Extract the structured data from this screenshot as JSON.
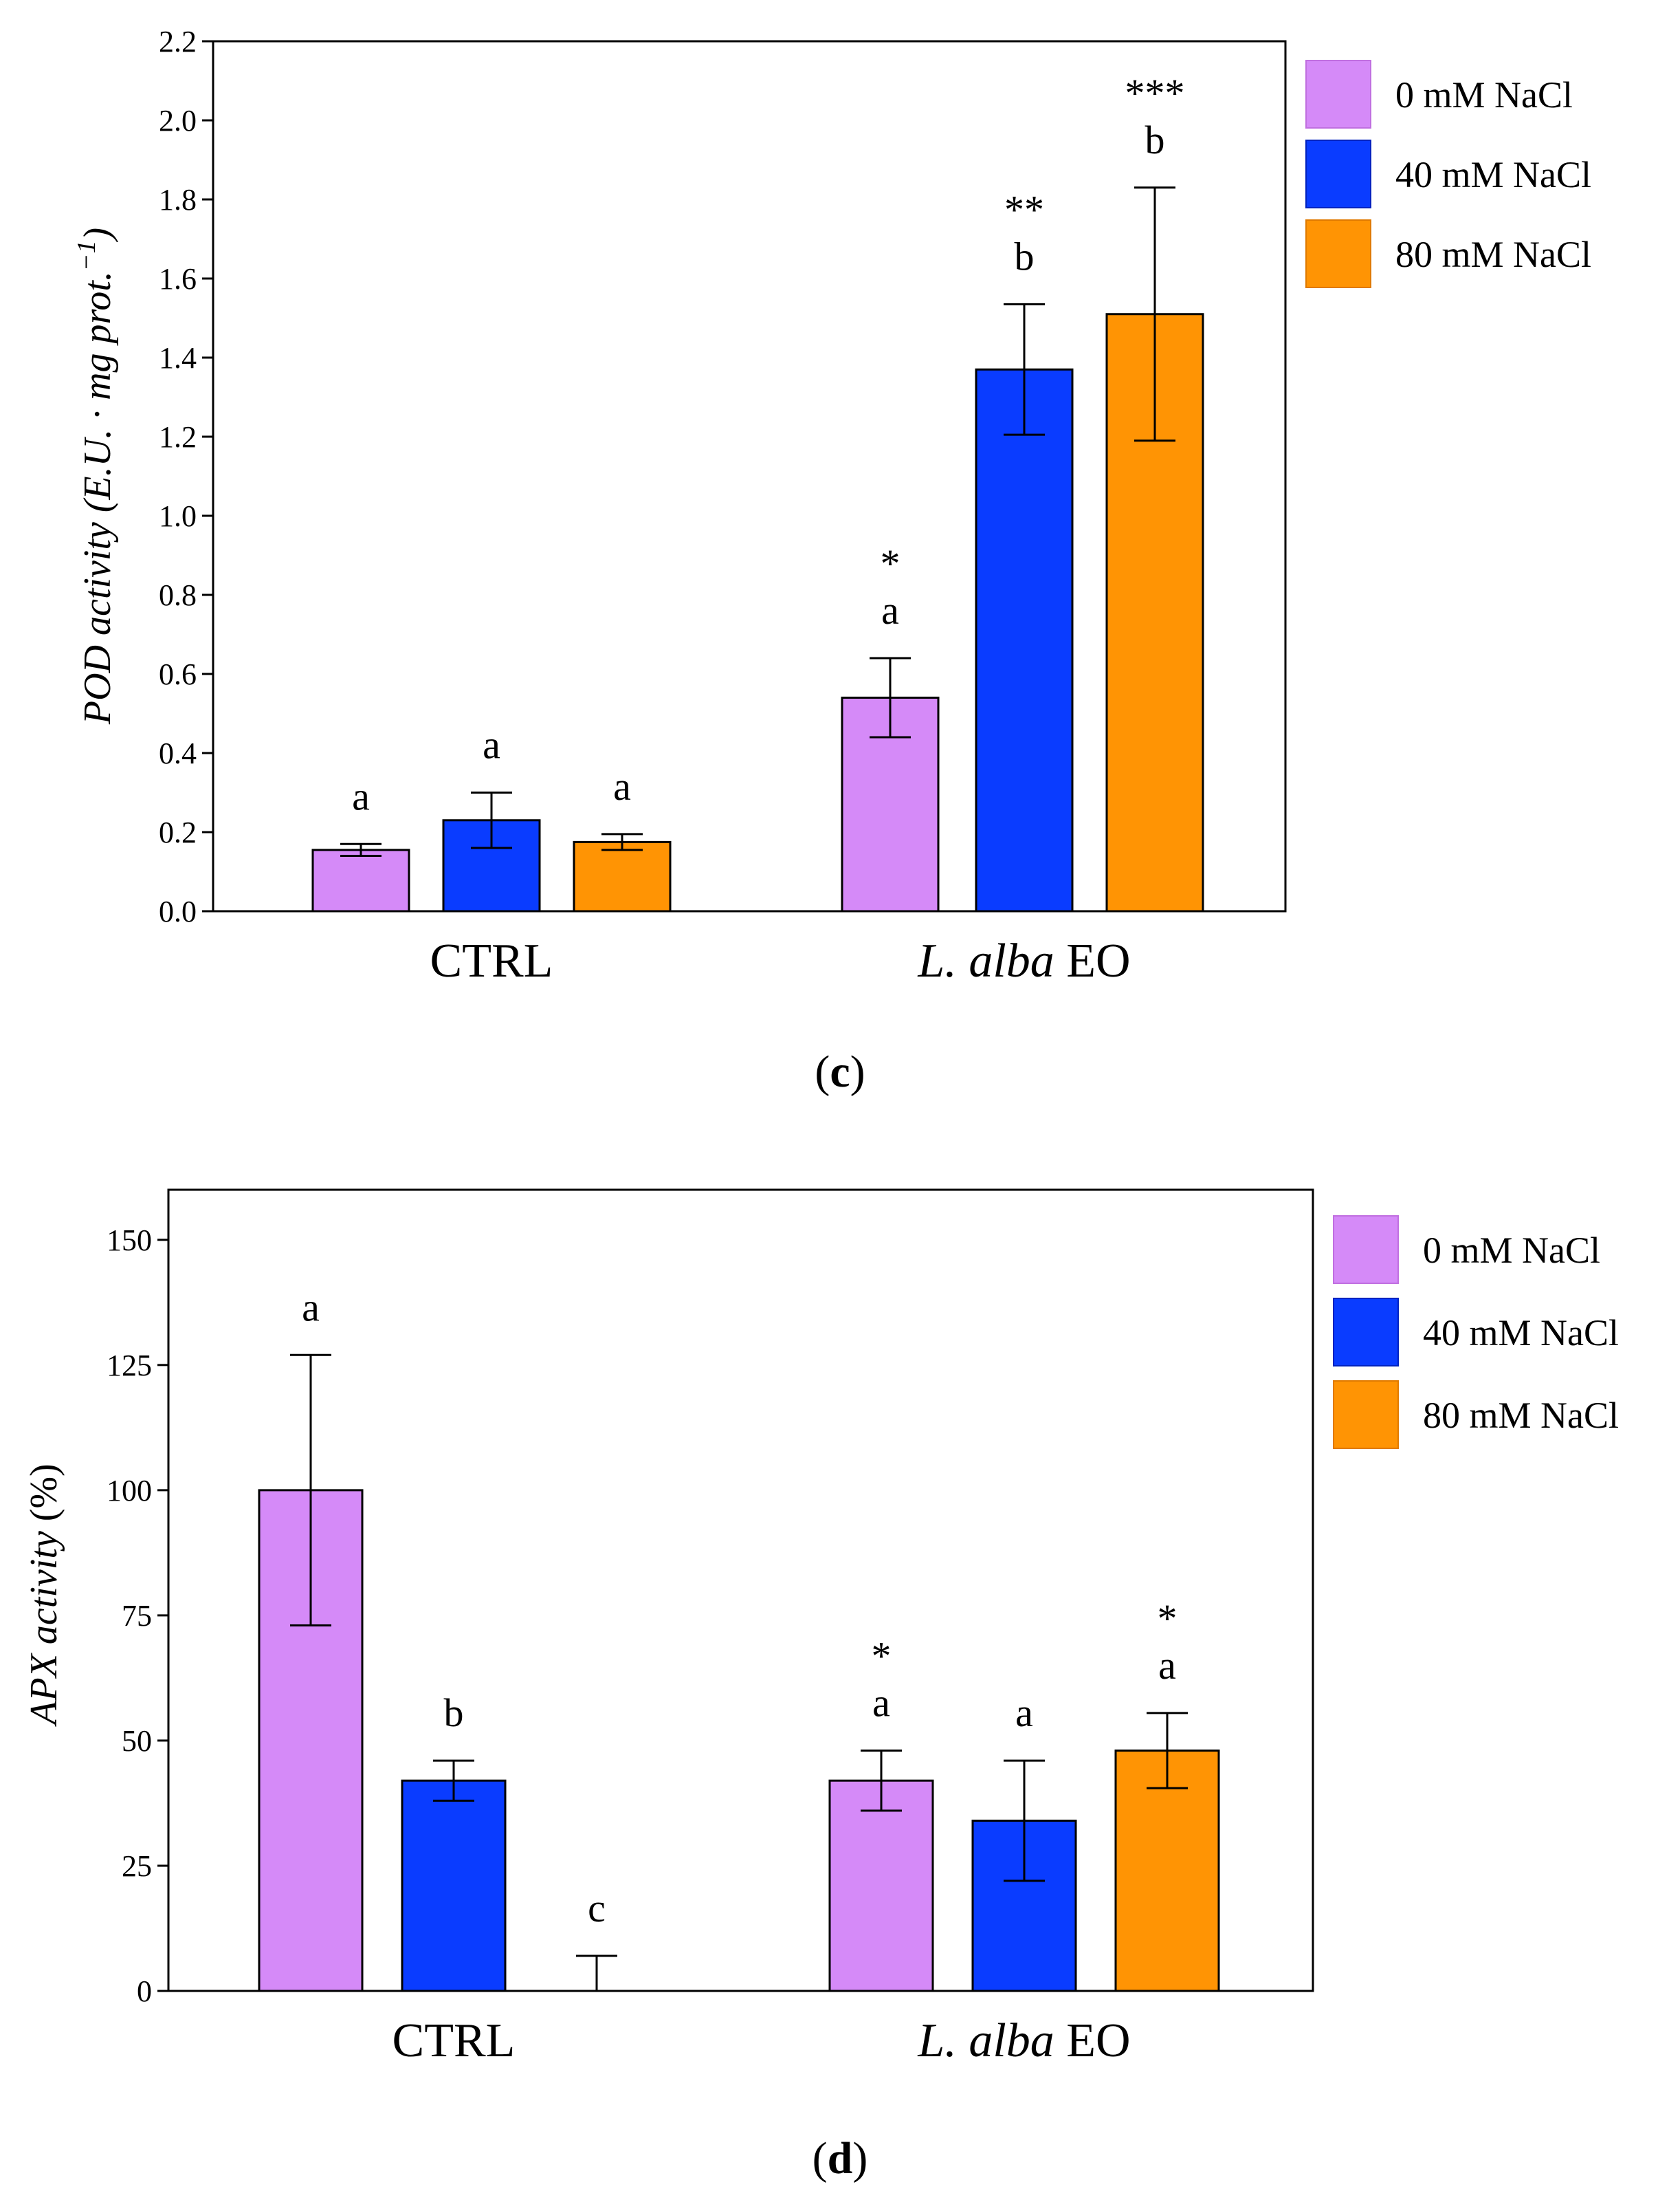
{
  "colors": {
    "0 mM NaCl": "#d58af8",
    "40 mM NaCl": "#0a3cff",
    "80 mM NaCl": "#ff9404",
    "0 mM NaCl_border": "#c06fe0",
    "40 mM NaCl_border": "#0022c0",
    "80 mM NaCl_border": "#e07a00"
  },
  "chart_data": [
    {
      "type": "bar",
      "panel_label": "c",
      "ylabel": "POD activity (E.U. · mg prot.⁻¹)",
      "ylabel_parts": {
        "pre": "POD activity (E.U. · mg prot.",
        "sup": "−1",
        "post": ")"
      },
      "xlabel": "",
      "ylim": [
        0,
        2.2
      ],
      "yticks": [
        "0.0",
        "0.2",
        "0.4",
        "0.6",
        "0.8",
        "1.0",
        "1.2",
        "1.4",
        "1.6",
        "1.8",
        "2.0",
        "2.2"
      ],
      "categories": [
        "CTRL",
        "L. alba EO"
      ],
      "category_parts": [
        {
          "italic": "",
          "roman": "CTRL"
        },
        {
          "italic": "L. alba",
          "roman": " EO"
        }
      ],
      "legend_position": "right",
      "series": [
        {
          "name": "0 mM NaCl",
          "values": [
            0.155,
            0.54
          ],
          "errors": [
            0.015,
            0.1
          ],
          "letters": [
            "a",
            "a"
          ],
          "stars": [
            "",
            "*"
          ]
        },
        {
          "name": "40 mM NaCl",
          "values": [
            0.23,
            1.37
          ],
          "errors": [
            0.07,
            0.165
          ],
          "letters": [
            "a",
            "b"
          ],
          "stars": [
            "",
            "**"
          ]
        },
        {
          "name": "80 mM NaCl",
          "values": [
            0.175,
            1.51
          ],
          "errors": [
            0.02,
            0.32
          ],
          "letters": [
            "a",
            "b"
          ],
          "stars": [
            "",
            "***"
          ]
        }
      ]
    },
    {
      "type": "bar",
      "panel_label": "d",
      "ylabel": "APX activity (%)",
      "ylabel_parts": {
        "pre": "APX activity",
        "sup": "",
        "post": " (%)"
      },
      "xlabel": "",
      "ylim": [
        0,
        160
      ],
      "yticks": [
        "0",
        "25",
        "50",
        "75",
        "100",
        "125",
        "150"
      ],
      "categories": [
        "CTRL",
        "L. alba EO"
      ],
      "category_parts": [
        {
          "italic": "",
          "roman": "CTRL"
        },
        {
          "italic": "L. alba",
          "roman": " EO"
        }
      ],
      "legend_position": "right",
      "series": [
        {
          "name": "0 mM NaCl",
          "values": [
            100,
            42
          ],
          "errors": [
            27,
            6
          ],
          "letters": [
            "a",
            "a"
          ],
          "stars": [
            "",
            "*"
          ]
        },
        {
          "name": "40 mM NaCl",
          "values": [
            42,
            34
          ],
          "errors": [
            4,
            12
          ],
          "letters": [
            "b",
            "a"
          ],
          "stars": [
            "",
            ""
          ]
        },
        {
          "name": "80 mM NaCl",
          "values": [
            0,
            48
          ],
          "errors": [
            7,
            7.5
          ],
          "letters": [
            "c",
            "a"
          ],
          "stars": [
            "",
            "*"
          ]
        }
      ]
    }
  ]
}
